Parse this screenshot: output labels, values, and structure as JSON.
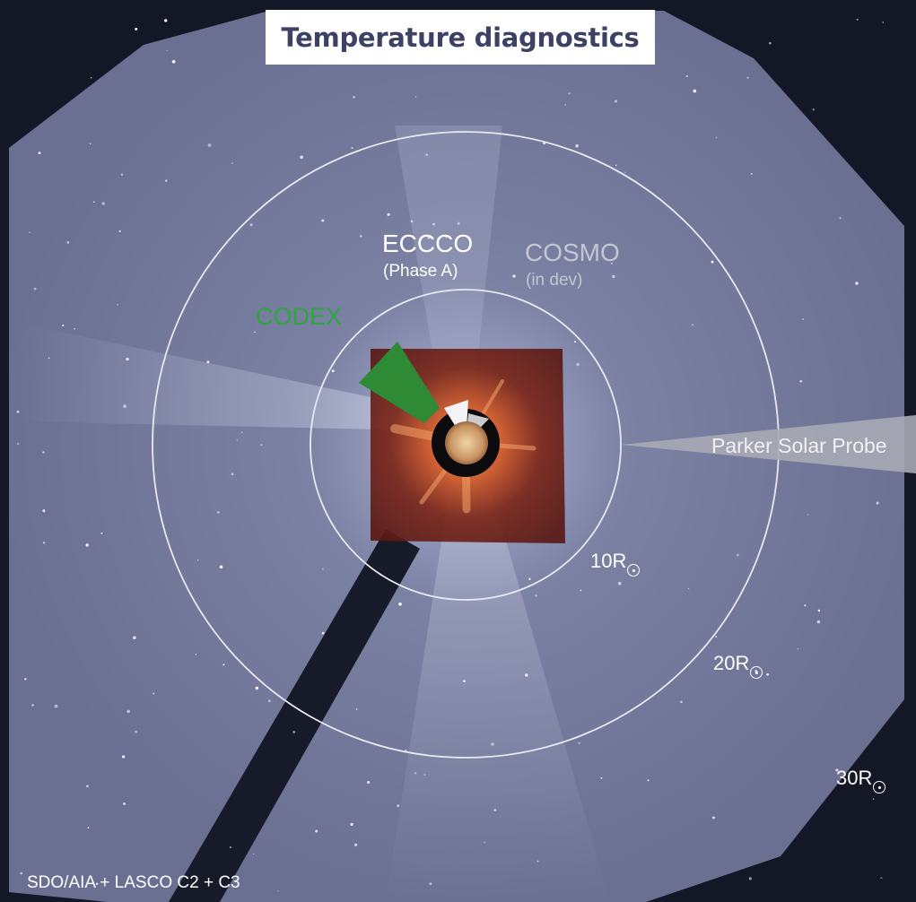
{
  "title": "Temperature diagnostics",
  "instruments": {
    "eccco": {
      "name": "ECCCO",
      "status": "(Phase A)",
      "color": "#ffffff"
    },
    "cosmo": {
      "name": "COSMO",
      "status": "(in dev)",
      "color": "#c4c6d1"
    },
    "codex": {
      "name": "CODEX",
      "color": "#2fa53d"
    },
    "parker": {
      "name": "Parker Solar Probe",
      "color": "#a9aab4"
    }
  },
  "radius_rings": [
    {
      "value": "10R",
      "unit_symbol": "sun-symbol"
    },
    {
      "value": "20R",
      "unit_symbol": "sun-symbol"
    },
    {
      "value": "30R",
      "unit_symbol": "sun-symbol"
    }
  ],
  "source_credit": "SDO/AIA + LASCO C2 + C3",
  "colors": {
    "background": "#141726",
    "corona_c3": "#767c9d",
    "corona_c2": "#6d1f17",
    "title_text": "#3d4265",
    "ring": "#e8e9f0"
  }
}
